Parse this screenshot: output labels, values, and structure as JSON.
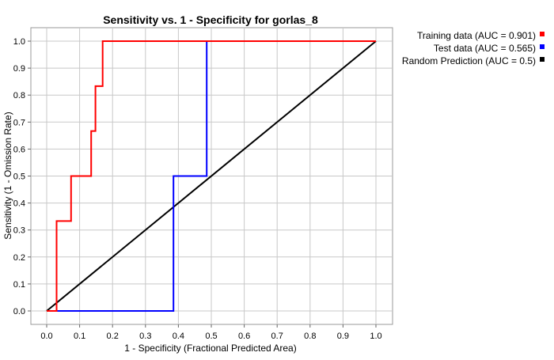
{
  "chart_data": {
    "type": "line",
    "title": "Sensitivity vs. 1 - Specificity for gorlas_8",
    "xlabel": "1 - Specificity  (Fractional Predicted Area)",
    "ylabel": "Sensitivity  (1 - Omission Rate)",
    "xlim": [
      0,
      1
    ],
    "ylim": [
      0,
      1
    ],
    "x_ticks": [
      "0.0",
      "0.1",
      "0.2",
      "0.3",
      "0.4",
      "0.5",
      "0.6",
      "0.7",
      "0.8",
      "0.9",
      "1.0"
    ],
    "y_ticks": [
      "0.0",
      "0.1",
      "0.2",
      "0.3",
      "0.4",
      "0.5",
      "0.6",
      "0.7",
      "0.8",
      "0.9",
      "1.0"
    ],
    "grid": true,
    "legend_position": "top-right, outside plot",
    "series": [
      {
        "name": "Training data (AUC = 0.901)",
        "color": "#ff0000",
        "points": [
          [
            0.0,
            0.0
          ],
          [
            0.03,
            0.0
          ],
          [
            0.03,
            0.333
          ],
          [
            0.074,
            0.333
          ],
          [
            0.074,
            0.5
          ],
          [
            0.135,
            0.5
          ],
          [
            0.135,
            0.667
          ],
          [
            0.148,
            0.667
          ],
          [
            0.148,
            0.833
          ],
          [
            0.17,
            0.833
          ],
          [
            0.17,
            1.0
          ],
          [
            1.0,
            1.0
          ]
        ]
      },
      {
        "name": "Test data (AUC = 0.565)",
        "color": "#0000ff",
        "points": [
          [
            0.0,
            0.0
          ],
          [
            0.385,
            0.0
          ],
          [
            0.385,
            0.5
          ],
          [
            0.486,
            0.5
          ],
          [
            0.486,
            1.0
          ],
          [
            1.0,
            1.0
          ]
        ]
      },
      {
        "name": "Random Prediction (AUC = 0.5)",
        "color": "#000000",
        "points": [
          [
            0.0,
            0.0
          ],
          [
            1.0,
            1.0
          ]
        ]
      }
    ]
  }
}
